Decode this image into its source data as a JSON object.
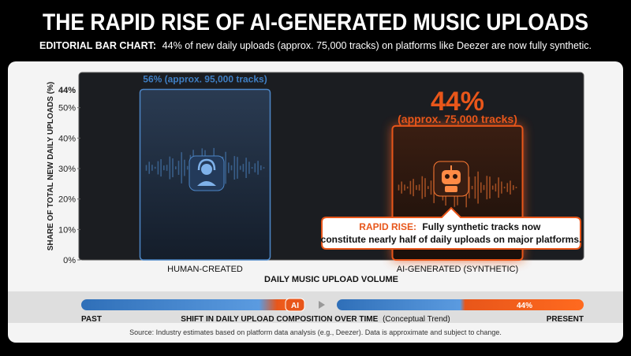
{
  "chart_data": {
    "type": "bar",
    "title": "THE RAPID RISE OF AI-GENERATED MUSIC UPLOADS",
    "subtitle_lead": "EDITORIAL BAR CHART:",
    "subtitle": "44% of new daily uploads (approx. 75,000 tracks) on platforms like Deezer are now fully synthetic.",
    "y_label": "SHARE OF TOTAL NEW DAILY UPLOADS (%)",
    "x_label": "DAILY MUSIC UPLOAD VOLUME",
    "categories": [
      "HUMAN-CREATED",
      "AI-GENERATED (SYNTHETIC)"
    ],
    "values": [
      56,
      44
    ],
    "value_labels": [
      "56% (approx. 95,000 tracks)",
      "44%"
    ],
    "ai_sublabel": "(approx. 75,000 tracks)",
    "colors": [
      "#1f2d40",
      "#e8561a"
    ],
    "ylim": [
      0,
      60
    ],
    "yticks": [
      {
        "value": 0,
        "label": "0%"
      },
      {
        "value": 10,
        "label": "10%"
      },
      {
        "value": 20,
        "label": "20%"
      },
      {
        "value": 30,
        "label": "30%"
      },
      {
        "value": 40,
        "label": "40%"
      },
      {
        "value": 50,
        "label": "50%"
      }
    ],
    "axis_top_label": "44%",
    "callout_lead": "RAPID RISE:",
    "callout": "Fully synthetic tracks now constitute nearly half of daily uploads on major platforms.",
    "timeline": {
      "left_label": "PAST",
      "right_label": "PRESENT",
      "title_lead": "SHIFT IN DAILY UPLOAD COMPOSITION OVER TIME",
      "title_note": "(Conceptual Trend)",
      "ai_badge": "AI",
      "present_badge": "44%"
    },
    "source": "Source: Industry estimates based on platform data analysis (e.g., Deezer). Data is approximate and subject to change."
  }
}
